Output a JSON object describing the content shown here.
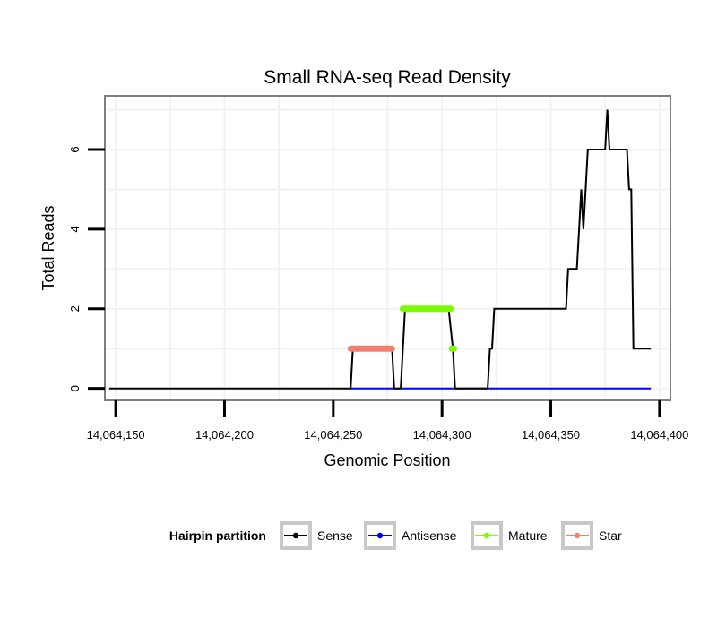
{
  "chart_data": {
    "type": "line",
    "title": "Small RNA-seq Read Density",
    "xlabel": "Genomic Position",
    "ylabel": "Total Reads",
    "xlim": [
      14064145,
      14064405
    ],
    "ylim": [
      -0.3,
      7.35
    ],
    "xticks": [
      14064150,
      14064200,
      14064250,
      14064300,
      14064350,
      14064400
    ],
    "xtick_labels": [
      "14,064,150",
      "14,064,200",
      "14,064,250",
      "14,064,300",
      "14,064,350",
      "14,064,400"
    ],
    "yticks": [
      0,
      2,
      4,
      6
    ],
    "ytick_labels": [
      "0",
      "2",
      "4",
      "6"
    ],
    "grid": true,
    "legend": {
      "title": "Hairpin partition",
      "position": "bottom",
      "entries": [
        {
          "label": "Sense",
          "color": "#000000"
        },
        {
          "label": "Antisense",
          "color": "#0000ff"
        },
        {
          "label": "Mature",
          "color": "#7cfc00"
        },
        {
          "label": "Star",
          "color": "#f08070"
        }
      ]
    },
    "series": [
      {
        "name": "Sense",
        "color": "#000000",
        "style": "line",
        "x": [
          14064147,
          14064258,
          14064259,
          14064277,
          14064278,
          14064281,
          14064283,
          14064303,
          14064305,
          14064306,
          14064321,
          14064322,
          14064323,
          14064324,
          14064357,
          14064358,
          14064362,
          14064363,
          14064364,
          14064365,
          14064366,
          14064367,
          14064368,
          14064369,
          14064375,
          14064376,
          14064377,
          14064378,
          14064385,
          14064386,
          14064387,
          14064388,
          14064396
        ],
        "values": [
          0,
          0,
          1,
          1,
          0,
          0,
          2,
          2,
          1,
          0,
          0,
          1,
          1,
          2,
          2,
          3,
          3,
          4,
          5,
          4,
          5,
          6,
          6,
          6,
          6,
          7,
          6,
          6,
          6,
          5,
          5,
          1,
          1
        ]
      },
      {
        "name": "Antisense",
        "color": "#0000ff",
        "style": "line",
        "x": [
          14064258,
          14064396
        ],
        "values": [
          0,
          0
        ]
      },
      {
        "name": "Mature",
        "color": "#7cfc00",
        "style": "segments",
        "segments": [
          {
            "x": [
              14064282,
              14064304
            ],
            "value": 2
          },
          {
            "x": [
              14064304.5,
              14064305.5
            ],
            "value": 1
          }
        ]
      },
      {
        "name": "Star",
        "color": "#f08070",
        "style": "segments",
        "segments": [
          {
            "x": [
              14064258,
              14064277
            ],
            "value": 1
          }
        ]
      }
    ]
  }
}
